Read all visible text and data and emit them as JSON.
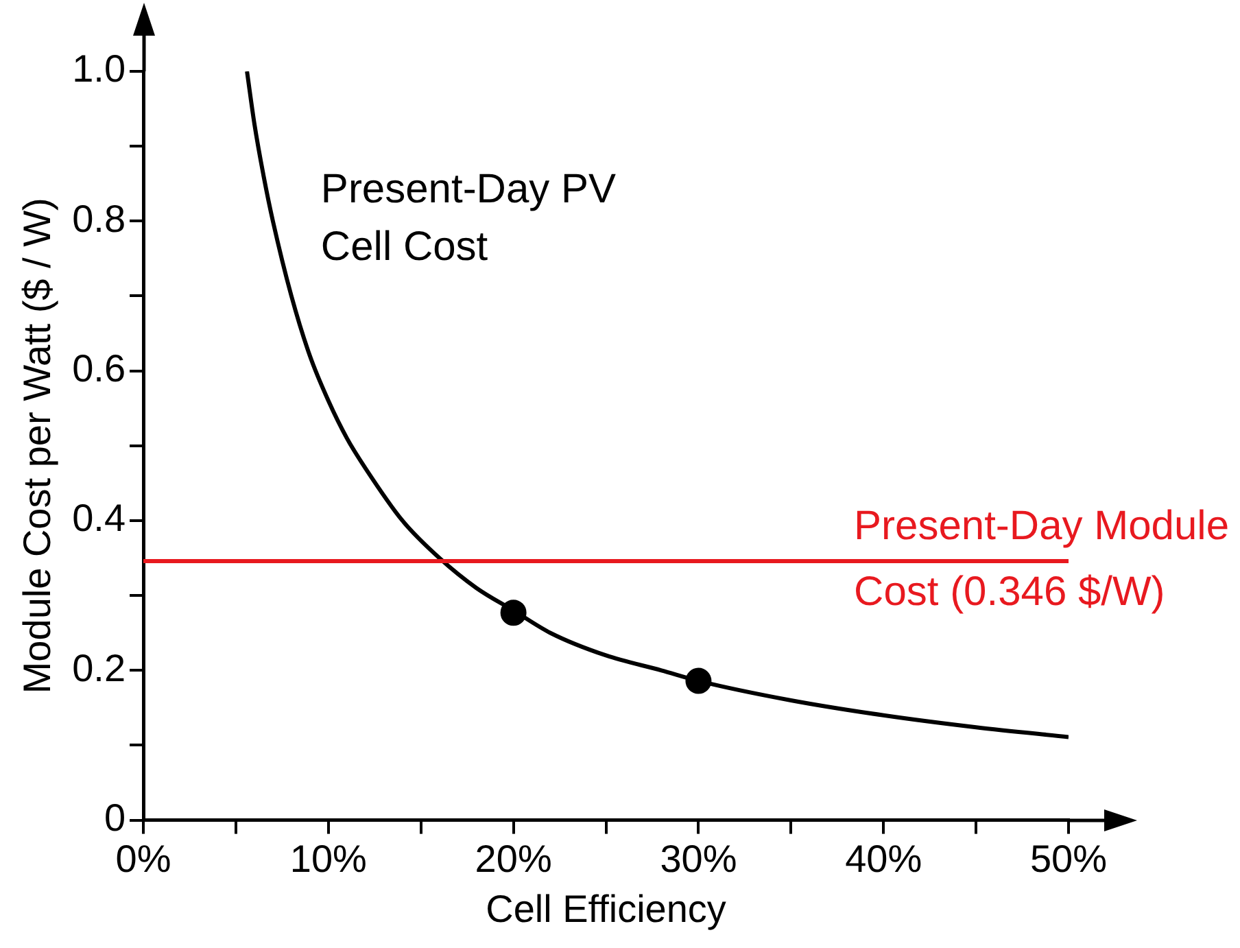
{
  "chart_data": {
    "type": "line",
    "xlabel": "Cell Efficiency",
    "ylabel": "Module Cost per Watt ($ / W)",
    "xlim": [
      0,
      50
    ],
    "ylim": [
      0,
      1.0
    ],
    "xticks": [
      {
        "value": 0,
        "label": "0%"
      },
      {
        "value": 5,
        "label": null
      },
      {
        "value": 10,
        "label": "10%"
      },
      {
        "value": 15,
        "label": null
      },
      {
        "value": 20,
        "label": "20%"
      },
      {
        "value": 25,
        "label": null
      },
      {
        "value": 30,
        "label": "30%"
      },
      {
        "value": 35,
        "label": null
      },
      {
        "value": 40,
        "label": "40%"
      },
      {
        "value": 45,
        "label": null
      },
      {
        "value": 50,
        "label": "50%"
      }
    ],
    "yticks": [
      0,
      {
        "value": 0.1,
        "label": null
      },
      {
        "value": 0.2,
        "label": "0.2"
      },
      {
        "value": 0.3,
        "label": null
      },
      {
        "value": 0.4,
        "label": "0.4"
      },
      {
        "value": 0.5,
        "label": null
      },
      {
        "value": 0.6,
        "label": "0.6"
      },
      {
        "value": 0.7,
        "label": null
      },
      {
        "value": 0.8,
        "label": "0.8"
      },
      {
        "value": 0.9,
        "label": null
      },
      {
        "value": 1,
        "label": "1.0"
      }
    ],
    "grid": false,
    "legend": false,
    "series": [
      {
        "name": "Present-Day PV Cell Cost",
        "color": "#000000",
        "marker": "none",
        "x": [
          5.6,
          6,
          6.5,
          7,
          8,
          9,
          10,
          11,
          12,
          14,
          16,
          18,
          20,
          22,
          25,
          28,
          30,
          35,
          40,
          45,
          50
        ],
        "values": [
          1.0,
          0.93,
          0.86,
          0.8,
          0.7,
          0.62,
          0.56,
          0.51,
          0.47,
          0.4,
          0.35,
          0.31,
          0.28,
          0.25,
          0.22,
          0.2,
          0.186,
          0.16,
          0.14,
          0.124,
          0.111
        ]
      },
      {
        "type": "scatter",
        "color": "#000000",
        "marker": "circle",
        "x": [
          20,
          30
        ],
        "values": [
          0.277,
          0.186
        ]
      }
    ],
    "ref_lines": [
      {
        "axis": "y",
        "value": 0.346,
        "label": "Present-Day Module Cost (0.346 $/W)",
        "color": "#e8191f"
      }
    ]
  }
}
